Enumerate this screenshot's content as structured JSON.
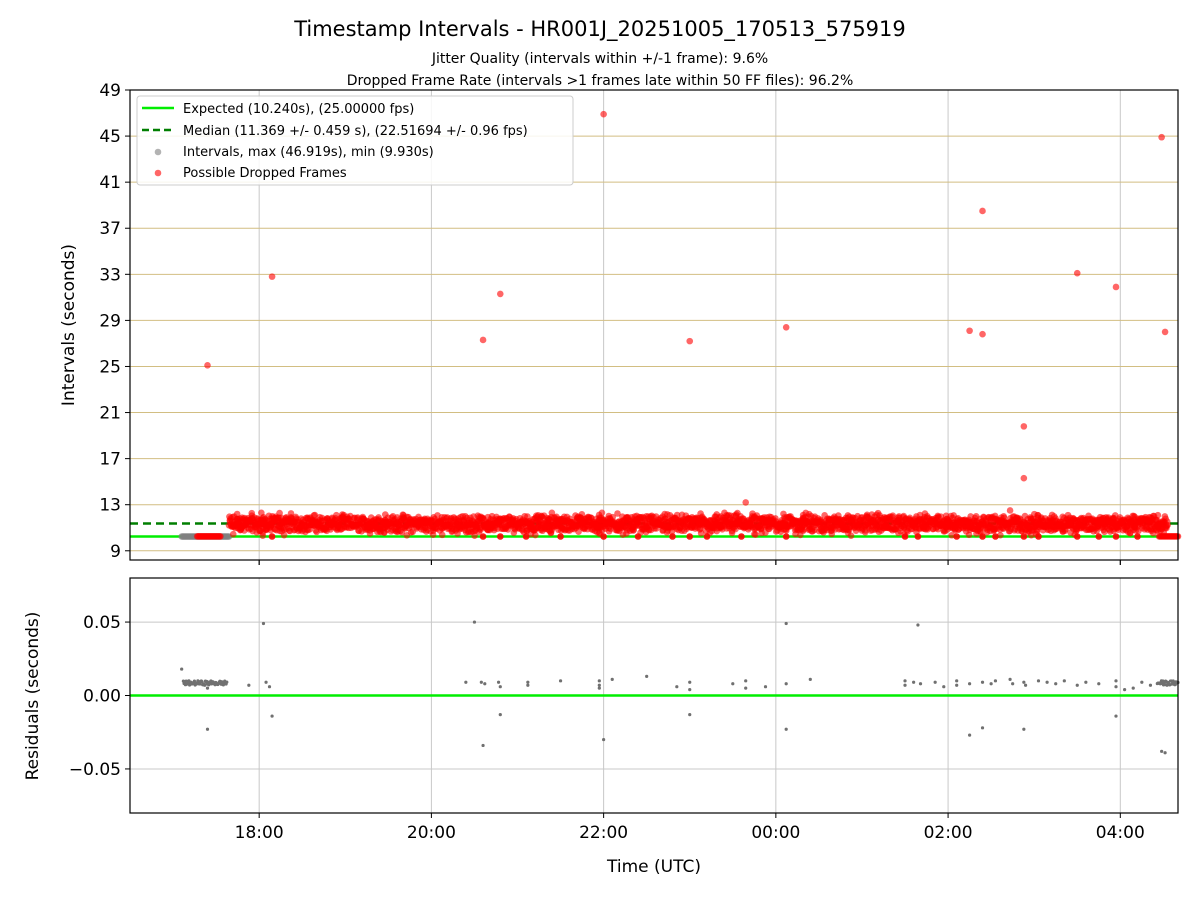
{
  "chart_data": [
    {
      "type": "scatter",
      "title": "Timestamp Intervals - HR001J_20251005_170513_575919",
      "subtitle_lines": [
        "Jitter Quality (intervals within +/-1 frame): 9.6%",
        "Dropped Frame Rate (intervals >1 frames late within 50 FF files): 96.2%"
      ],
      "xlabel": "",
      "ylabel": "Intervals (seconds)",
      "x_unit": "hours since 00:00 UTC (negative = previous day)",
      "xlim": [
        -7.5,
        4.67
      ],
      "ylim": [
        8.2,
        49
      ],
      "yticks": [
        9,
        13,
        17,
        21,
        25,
        29,
        33,
        37,
        41,
        45,
        49
      ],
      "ytick_labels": [
        "9",
        "13",
        "17",
        "21",
        "25",
        "29",
        "33",
        "37",
        "41",
        "45",
        "49"
      ],
      "xticks": [
        -6,
        -4,
        -2,
        0,
        2,
        4
      ],
      "grid": true,
      "expected_interval": 10.24,
      "median_interval": 11.369,
      "legend_position": "top-left",
      "legend": [
        {
          "label": "Expected (10.240s), (25.00000 fps)",
          "style": "solid-line",
          "color": "#00ee00"
        },
        {
          "label": "Median (11.369 +/- 0.459 s), (22.51694 +/- 0.96 fps)",
          "style": "dashed-line",
          "color": "#007f00"
        },
        {
          "label": "Intervals, max (46.919s), min (9.930s)",
          "style": "marker",
          "color": "#808080"
        },
        {
          "label": "Possible Dropped Frames",
          "style": "marker",
          "color": "#ff0000"
        }
      ],
      "series": [
        {
          "name": "Intervals",
          "color": "#808080",
          "band_start_x": -6.9,
          "band_end_x": -6.35,
          "typical_y": 10.24
        },
        {
          "name": "Possible Dropped Frames",
          "color": "#ff0000",
          "dense_band": {
            "x_start": -6.35,
            "x_end": 4.55,
            "y_low": 10.3,
            "y_high": 12.3
          },
          "cluster_near_expected": [
            {
              "x_start": -6.72,
              "x_end": -6.45,
              "y": 10.25
            },
            {
              "x_start": 4.45,
              "x_end": 4.67,
              "y": 10.25
            }
          ],
          "outliers": [
            {
              "x": -6.6,
              "y": 25.1
            },
            {
              "x": -5.85,
              "y": 32.8
            },
            {
              "x": -3.4,
              "y": 27.3
            },
            {
              "x": -3.2,
              "y": 31.3
            },
            {
              "x": -2.0,
              "y": 46.9
            },
            {
              "x": -1.0,
              "y": 27.2
            },
            {
              "x": -0.35,
              "y": 13.2
            },
            {
              "x": 0.12,
              "y": 28.4
            },
            {
              "x": 2.25,
              "y": 28.1
            },
            {
              "x": 2.4,
              "y": 27.8
            },
            {
              "x": 2.4,
              "y": 38.5
            },
            {
              "x": 2.88,
              "y": 19.8
            },
            {
              "x": 2.88,
              "y": 15.3
            },
            {
              "x": 2.72,
              "y": 12.5
            },
            {
              "x": 3.5,
              "y": 33.1
            },
            {
              "x": 3.95,
              "y": 31.9
            },
            {
              "x": 4.48,
              "y": 44.9
            },
            {
              "x": 4.52,
              "y": 28.0
            }
          ],
          "baseline_points_x": [
            -5.85,
            -2.0,
            -1.0,
            0.12,
            2.4,
            2.88,
            3.5,
            3.95,
            -3.4,
            -3.2,
            -2.9,
            -2.5,
            -1.6,
            -1.2,
            -0.8,
            -0.4,
            1.5,
            1.65,
            2.1,
            2.55,
            3.05,
            3.75,
            4.2
          ]
        }
      ]
    },
    {
      "type": "scatter",
      "title": "",
      "xlabel": "Time (UTC)",
      "ylabel": "Residuals (seconds)",
      "xlim": [
        -7.5,
        4.67
      ],
      "ylim": [
        -0.08,
        0.08
      ],
      "yticks": [
        -0.05,
        0.0,
        0.05
      ],
      "ytick_labels": [
        "−0.05",
        "0.00",
        "0.05"
      ],
      "xticks": [
        -6,
        -4,
        -2,
        0,
        2,
        4
      ],
      "xtick_labels": [
        "18:00",
        "20:00",
        "22:00",
        "00:00",
        "02:00",
        "04:00"
      ],
      "grid": true,
      "zero_line_color": "#00ee00",
      "series": [
        {
          "name": "Residuals",
          "color": "#707070",
          "dense_clusters": [
            {
              "x_start": -6.88,
              "x_end": -6.37,
              "y": 0.0085
            },
            {
              "x_start": 4.43,
              "x_end": 4.67,
              "y": 0.0085
            }
          ],
          "points": [
            {
              "x": -6.9,
              "y": 0.018
            },
            {
              "x": -6.6,
              "y": -0.023
            },
            {
              "x": -6.6,
              "y": 0.005
            },
            {
              "x": -6.12,
              "y": 0.007
            },
            {
              "x": -5.95,
              "y": 0.049
            },
            {
              "x": -5.92,
              "y": 0.009
            },
            {
              "x": -5.88,
              "y": 0.006
            },
            {
              "x": -5.85,
              "y": -0.014
            },
            {
              "x": -3.6,
              "y": 0.009
            },
            {
              "x": -3.5,
              "y": 0.05
            },
            {
              "x": -3.42,
              "y": 0.009
            },
            {
              "x": -3.38,
              "y": 0.008
            },
            {
              "x": -3.4,
              "y": -0.034
            },
            {
              "x": -3.22,
              "y": 0.009
            },
            {
              "x": -3.2,
              "y": 0.006
            },
            {
              "x": -3.2,
              "y": -0.013
            },
            {
              "x": -2.88,
              "y": 0.009
            },
            {
              "x": -2.88,
              "y": 0.007
            },
            {
              "x": -2.5,
              "y": 0.01
            },
            {
              "x": -2.05,
              "y": 0.01
            },
            {
              "x": -2.05,
              "y": 0.007
            },
            {
              "x": -2.05,
              "y": 0.005
            },
            {
              "x": -2.0,
              "y": -0.03
            },
            {
              "x": -1.9,
              "y": 0.011
            },
            {
              "x": -1.5,
              "y": 0.013
            },
            {
              "x": -1.15,
              "y": 0.006
            },
            {
              "x": -1.0,
              "y": 0.009
            },
            {
              "x": -1.0,
              "y": 0.004
            },
            {
              "x": -1.0,
              "y": -0.013
            },
            {
              "x": -0.5,
              "y": 0.008
            },
            {
              "x": -0.35,
              "y": 0.01
            },
            {
              "x": -0.35,
              "y": 0.005
            },
            {
              "x": -0.12,
              "y": 0.006
            },
            {
              "x": 0.12,
              "y": 0.049
            },
            {
              "x": 0.12,
              "y": 0.008
            },
            {
              "x": 0.12,
              "y": -0.023
            },
            {
              "x": 0.4,
              "y": 0.011
            },
            {
              "x": 1.5,
              "y": 0.01
            },
            {
              "x": 1.5,
              "y": 0.007
            },
            {
              "x": 1.6,
              "y": 0.009
            },
            {
              "x": 1.65,
              "y": 0.048
            },
            {
              "x": 1.68,
              "y": 0.008
            },
            {
              "x": 1.85,
              "y": 0.009
            },
            {
              "x": 1.95,
              "y": 0.006
            },
            {
              "x": 2.1,
              "y": 0.01
            },
            {
              "x": 2.1,
              "y": 0.007
            },
            {
              "x": 2.25,
              "y": 0.008
            },
            {
              "x": 2.25,
              "y": -0.027
            },
            {
              "x": 2.4,
              "y": 0.009
            },
            {
              "x": 2.4,
              "y": -0.022
            },
            {
              "x": 2.5,
              "y": 0.008
            },
            {
              "x": 2.55,
              "y": 0.01
            },
            {
              "x": 2.72,
              "y": 0.011
            },
            {
              "x": 2.75,
              "y": 0.008
            },
            {
              "x": 2.88,
              "y": 0.009
            },
            {
              "x": 2.88,
              "y": -0.023
            },
            {
              "x": 2.9,
              "y": 0.007
            },
            {
              "x": 3.05,
              "y": 0.01
            },
            {
              "x": 3.15,
              "y": 0.009
            },
            {
              "x": 3.25,
              "y": 0.008
            },
            {
              "x": 3.35,
              "y": 0.01
            },
            {
              "x": 3.5,
              "y": 0.007
            },
            {
              "x": 3.6,
              "y": 0.009
            },
            {
              "x": 3.75,
              "y": 0.008
            },
            {
              "x": 3.95,
              "y": 0.01
            },
            {
              "x": 3.95,
              "y": 0.006
            },
            {
              "x": 3.95,
              "y": -0.014
            },
            {
              "x": 4.05,
              "y": 0.004
            },
            {
              "x": 4.15,
              "y": 0.005
            },
            {
              "x": 4.25,
              "y": 0.009
            },
            {
              "x": 4.35,
              "y": 0.007
            },
            {
              "x": 4.48,
              "y": -0.038
            },
            {
              "x": 4.52,
              "y": -0.039
            }
          ]
        }
      ]
    }
  ]
}
